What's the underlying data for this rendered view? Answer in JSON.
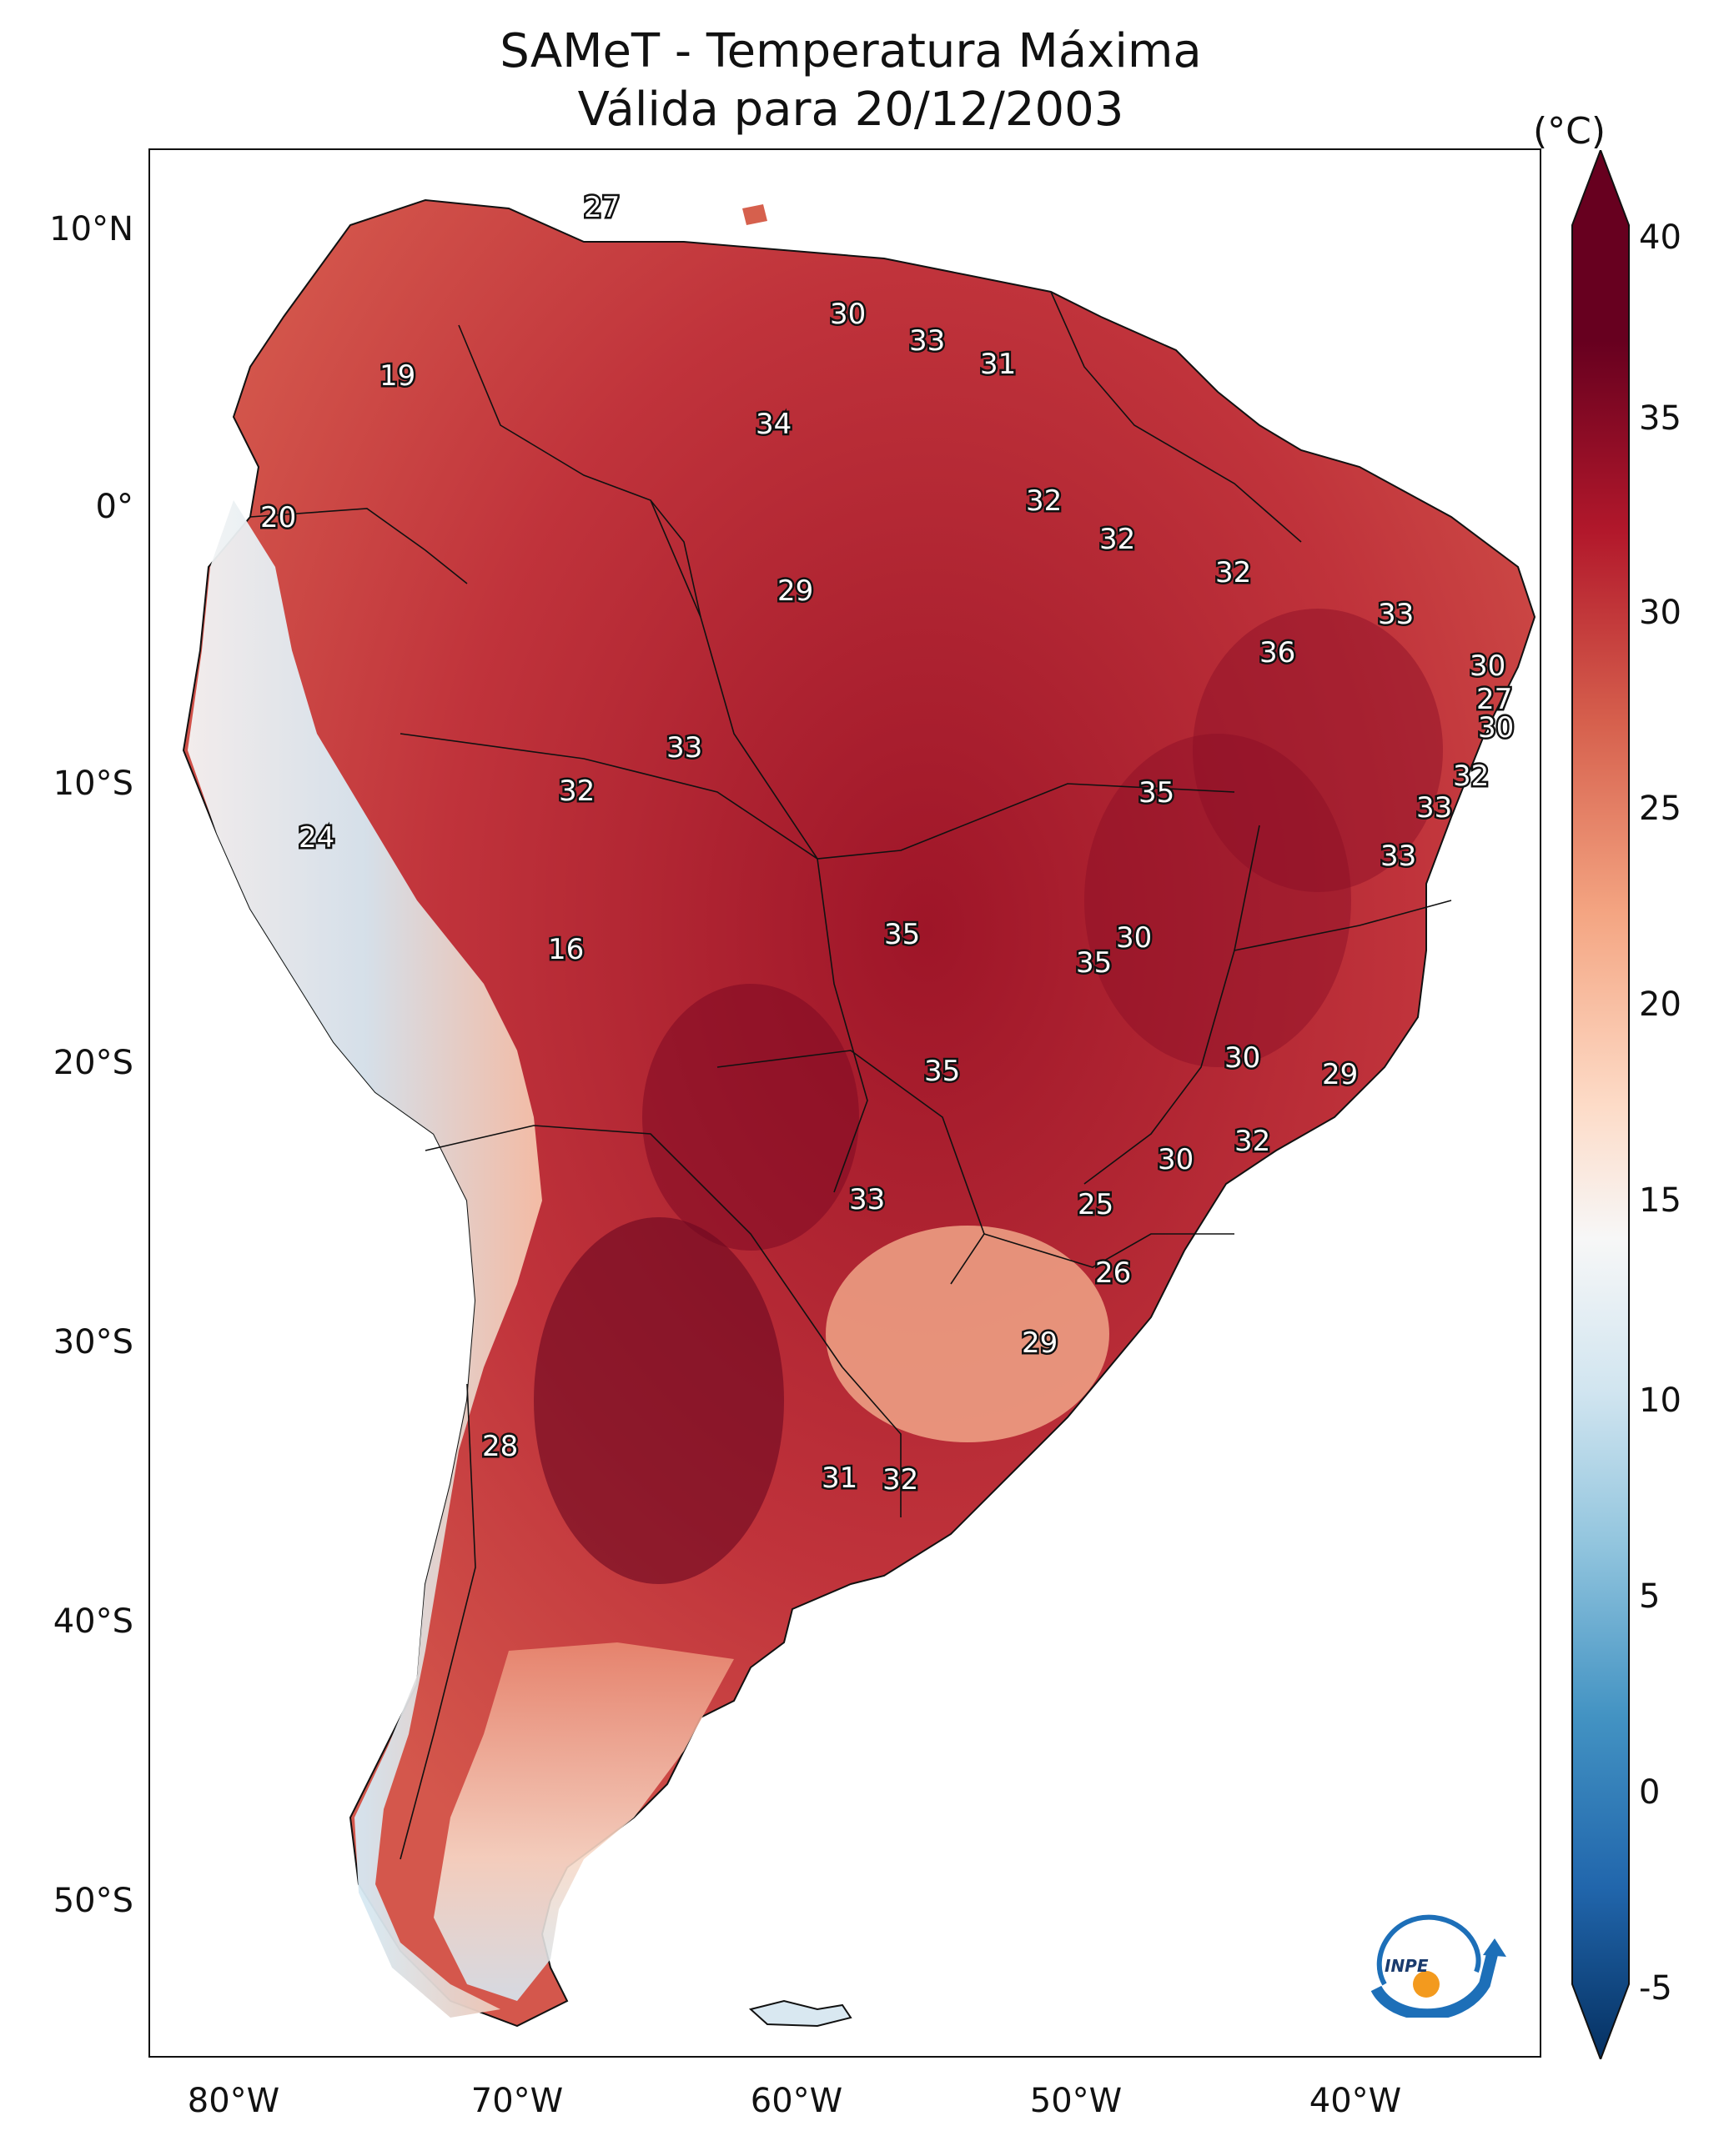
{
  "title": {
    "line1": "SAMeT - Temperatura Máxima",
    "line2": "Válida para 20/12/2003"
  },
  "map": {
    "type": "temperature-map",
    "lat_ticks": [
      "10°N",
      "0°",
      "10°S",
      "20°S",
      "30°S",
      "40°S",
      "50°S"
    ],
    "lon_ticks": [
      "80°W",
      "70°W",
      "60°W",
      "50°W",
      "40°W"
    ],
    "contour_labels": [
      "27",
      "19",
      "30",
      "33",
      "31",
      "34",
      "20",
      "32",
      "32",
      "29",
      "32",
      "33",
      "36",
      "30",
      "27",
      "30",
      "33",
      "32",
      "35",
      "32",
      "24",
      "33",
      "33",
      "16",
      "35",
      "30",
      "35",
      "30",
      "35",
      "29",
      "32",
      "30",
      "33",
      "25",
      "26",
      "29",
      "28",
      "31",
      "32"
    ]
  },
  "colorbar": {
    "unit": "(°C)",
    "ticks": [
      "40",
      "35",
      "30",
      "25",
      "20",
      "15",
      "10",
      "5",
      "0",
      "-5"
    ],
    "colors": [
      "#67001f",
      "#b2182b",
      "#d6604d",
      "#f4a582",
      "#fddbc7",
      "#f7f7f7",
      "#d1e5f0",
      "#92c5de",
      "#4393c3",
      "#2166ac",
      "#053061"
    ]
  },
  "logo": {
    "text": "INPE"
  }
}
